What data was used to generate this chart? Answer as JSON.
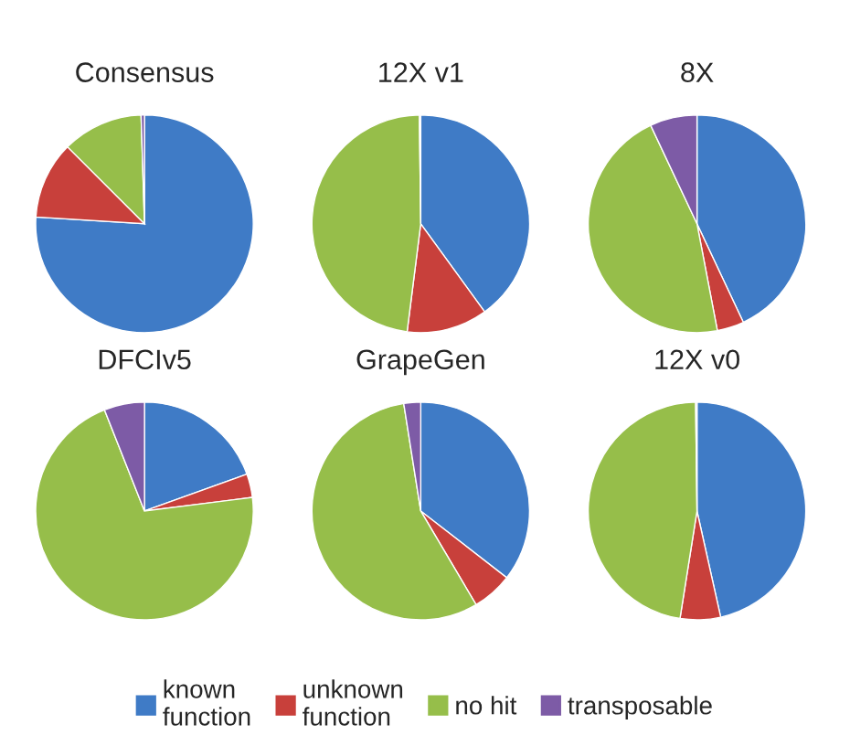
{
  "chart_data": [
    {
      "type": "pie",
      "title": "Consensus",
      "categories": [
        "known function",
        "unknown function",
        "no hit",
        "transposable"
      ],
      "values": [
        76,
        11.5,
        12,
        0.5
      ],
      "colors": [
        "#3f7bc6",
        "#c8403b",
        "#96be4a",
        "#7d5ba6"
      ],
      "legend": "bottom"
    },
    {
      "type": "pie",
      "title": "12X v1",
      "categories": [
        null,
        null,
        null,
        null
      ],
      "values": [
        40,
        12,
        47.8,
        0.2
      ],
      "colors": [
        "#3f7bc6",
        "#c8403b",
        "#96be4a",
        "#7d5ba6"
      ]
    },
    {
      "type": "pie",
      "title": "8X",
      "categories": [
        null,
        null,
        null,
        null
      ],
      "values": [
        43,
        4,
        46,
        7
      ],
      "colors": [
        "#3f7bc6",
        "#c8403b",
        "#96be4a",
        "#7d5ba6"
      ]
    },
    {
      "type": "pie",
      "title": "DFCIv5",
      "categories": [
        null,
        null,
        null,
        null
      ],
      "values": [
        19.5,
        3.5,
        71,
        6
      ],
      "colors": [
        "#3f7bc6",
        "#c8403b",
        "#96be4a",
        "#7d5ba6"
      ]
    },
    {
      "type": "pie",
      "title": "GrapeGen",
      "categories": [
        null,
        null,
        null,
        null
      ],
      "values": [
        35.5,
        6,
        56,
        2.5
      ],
      "colors": [
        "#3f7bc6",
        "#c8403b",
        "#96be4a",
        "#7d5ba6"
      ]
    },
    {
      "type": "pie",
      "title": "12X v0",
      "categories": [
        null,
        null,
        null,
        null
      ],
      "values": [
        46.5,
        6,
        47.3,
        0.2
      ],
      "colors": [
        "#3f7bc6",
        "#c8403b",
        "#96be4a",
        "#7d5ba6"
      ]
    }
  ]
}
